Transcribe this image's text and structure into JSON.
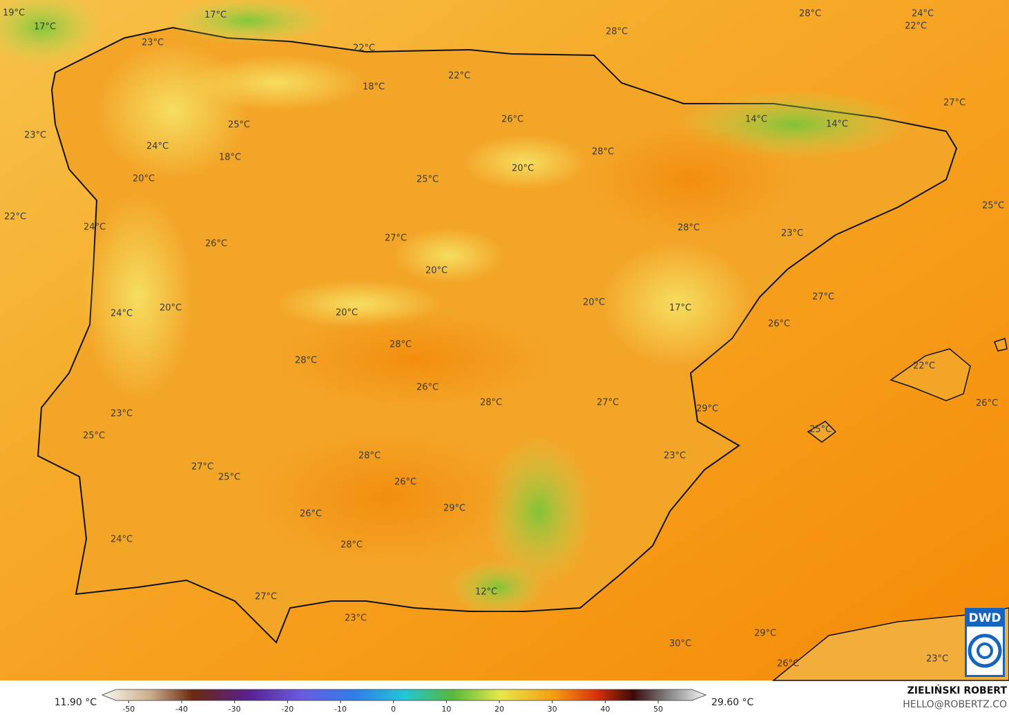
{
  "map": {
    "temperature_labels": [
      "19°C",
      "17°C",
      "17°C",
      "28°C",
      "24°C",
      "22°C",
      "23°C",
      "22°C",
      "28°C",
      "22°C",
      "18°C",
      "27°C",
      "26°C",
      "14°C",
      "14°C",
      "23°C",
      "25°C",
      "24°C",
      "18°C",
      "28°C",
      "20°C",
      "20°C",
      "25°C",
      "22°C",
      "25°C",
      "24°C",
      "28°C",
      "23°C",
      "26°C",
      "27°C",
      "20°C",
      "27°C",
      "20°C",
      "17°C",
      "20°C",
      "24°C",
      "20°C",
      "26°C",
      "28°C",
      "28°C",
      "22°C",
      "26°C",
      "28°C",
      "27°C",
      "29°C",
      "26°C",
      "23°C",
      "25°C",
      "25°C",
      "28°C",
      "23°C",
      "27°C",
      "25°C",
      "26°C",
      "29°C",
      "26°C",
      "24°C",
      "28°C",
      "12°C",
      "27°C",
      "23°C",
      "29°C",
      "30°C",
      "23°C",
      "26°C"
    ]
  },
  "legend": {
    "min": "11.90 °C",
    "max": "29.60 °C",
    "range": [
      -55,
      59
    ],
    "ticks": [
      -50,
      -40,
      -30,
      -20,
      -10,
      0,
      10,
      20,
      30,
      40,
      50
    ]
  },
  "credit": {
    "author": "ZIELIŃSKI ROBERT",
    "contact": "HELLO@ROBERTZ.CO"
  },
  "logo": "DWD"
}
